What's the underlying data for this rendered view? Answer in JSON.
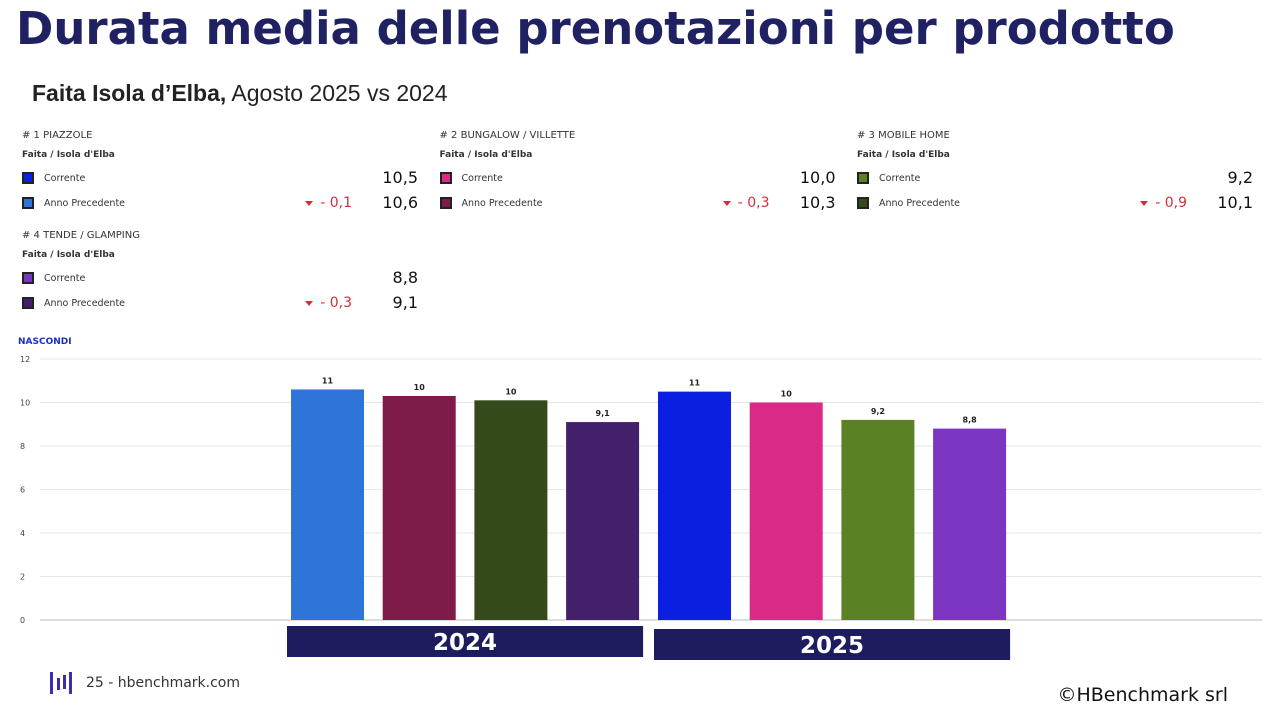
{
  "header": {
    "title": "Durata media delle prenotazioni per prodotto",
    "subtitle_bold": "Faita Isola d’Elba,",
    "subtitle": "Agosto 2025 vs 2024"
  },
  "cards": [
    {
      "title": "# 1 PIAZZOLE",
      "subtitle": "Faita / Isola d'Elba",
      "rows": [
        {
          "label": "Corrente",
          "value": "10,5",
          "color": "#0b1fe0"
        },
        {
          "label": "Anno Precedente",
          "delta": "- 0,1",
          "value": "10,6",
          "color": "#2f74d8"
        }
      ]
    },
    {
      "title": "# 2 BUNGALOW / VILLETTE",
      "subtitle": "Faita / Isola d'Elba",
      "rows": [
        {
          "label": "Corrente",
          "value": "10,0",
          "color": "#d92a85"
        },
        {
          "label": "Anno Precedente",
          "delta": "- 0,3",
          "value": "10,3",
          "color": "#7e1b48"
        }
      ]
    },
    {
      "title": "# 3 MOBILE HOME",
      "subtitle": "Faita / Isola d'Elba",
      "rows": [
        {
          "label": "Corrente",
          "value": "9,2",
          "color": "#5a8224"
        },
        {
          "label": "Anno Precedente",
          "delta": "- 0,9",
          "value": "10,1",
          "color": "#344a1b"
        }
      ]
    },
    {
      "title": "# 4 TENDE / GLAMPING",
      "subtitle": "Faita / Isola d'Elba",
      "rows": [
        {
          "label": "Corrente",
          "value": "8,8",
          "color": "#7b35c0"
        },
        {
          "label": "Anno Precedente",
          "delta": "- 0,3",
          "value": "9,1",
          "color": "#45206a"
        }
      ]
    }
  ],
  "hide_label": "NASCONDI",
  "chart_data": {
    "type": "bar",
    "categories": [
      "2024",
      "2025"
    ],
    "series": [
      {
        "colors": [
          "#2f74d8",
          "#0b1fe0"
        ],
        "values": [
          10.6,
          10.5
        ],
        "value_labels": [
          "11",
          "11"
        ]
      },
      {
        "colors": [
          "#7e1b48",
          "#d92a85"
        ],
        "values": [
          10.3,
          10.0
        ],
        "value_labels": [
          "10",
          "10"
        ]
      },
      {
        "colors": [
          "#344a1b",
          "#5a8224"
        ],
        "values": [
          10.1,
          9.2
        ],
        "value_labels": [
          "10",
          "9,2"
        ]
      },
      {
        "colors": [
          "#45206a",
          "#7b35c0"
        ],
        "values": [
          9.1,
          8.8
        ],
        "value_labels": [
          "9,1",
          "8,8"
        ]
      }
    ],
    "ylim": [
      0,
      12
    ],
    "yticks": [
      0,
      2,
      4,
      6,
      8,
      10,
      12
    ],
    "grid": true
  },
  "footer": {
    "page": "25 - hbenchmark.com",
    "copyright": "©HBenchmark srl"
  }
}
